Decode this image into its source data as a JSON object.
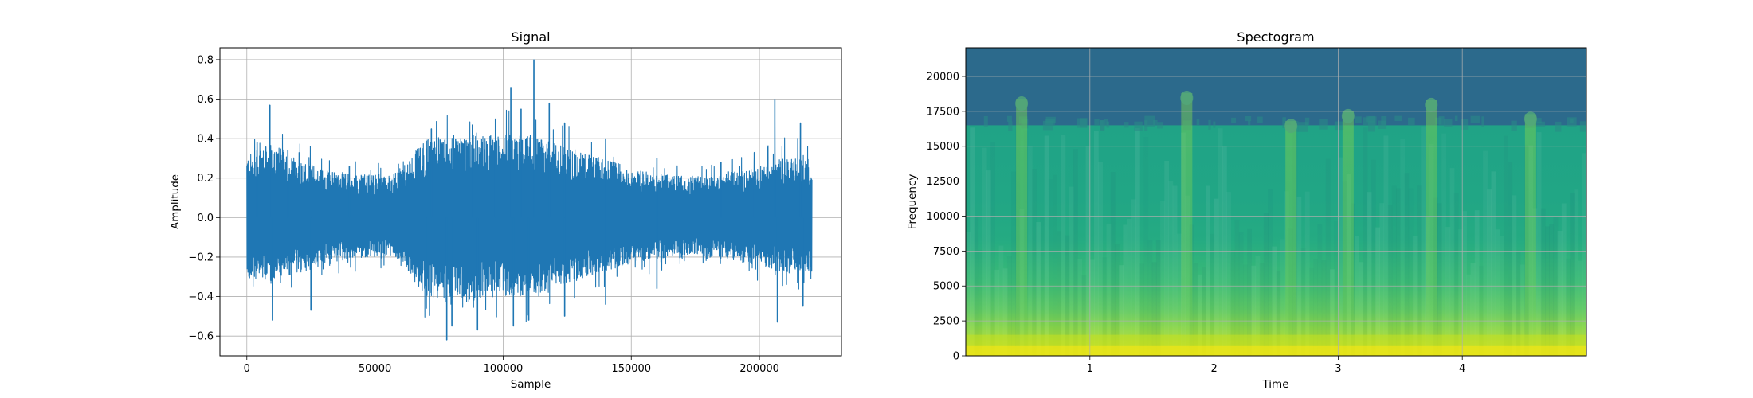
{
  "figure": {
    "background": "#ffffff"
  },
  "chart_data": [
    {
      "type": "line",
      "title": "Signal",
      "xlabel": "Sample",
      "ylabel": "Amplitude",
      "xlim": [
        -10500,
        232000
      ],
      "ylim": [
        -0.7,
        0.86
      ],
      "xticks": [
        0,
        50000,
        100000,
        150000,
        200000
      ],
      "xtick_labels": [
        "0",
        "50000",
        "100000",
        "150000",
        "200000"
      ],
      "yticks": [
        -0.6,
        -0.4,
        -0.2,
        0.0,
        0.2,
        0.4,
        0.6,
        0.8
      ],
      "ytick_labels": [
        "−0.6",
        "−0.4",
        "−0.2",
        "0.0",
        "0.2",
        "0.4",
        "0.6",
        "0.8"
      ],
      "grid": true,
      "line_color": "#1f77b4",
      "series": [
        {
          "x_range": [
            0,
            220500
          ],
          "envelope": {
            "x": [
              0,
              10000,
              20000,
              30000,
              40000,
              50000,
              55000,
              60000,
              70000,
              80000,
              90000,
              100000,
              110000,
              120000,
              130000,
              140000,
              150000,
              160000,
              170000,
              180000,
              190000,
              200000,
              210000,
              220500
            ],
            "upper": [
              0.3,
              0.36,
              0.28,
              0.24,
              0.21,
              0.21,
              0.2,
              0.24,
              0.38,
              0.4,
              0.4,
              0.4,
              0.4,
              0.36,
              0.32,
              0.28,
              0.24,
              0.21,
              0.2,
              0.2,
              0.22,
              0.24,
              0.3,
              0.28
            ],
            "lower": [
              -0.3,
              -0.32,
              -0.27,
              -0.23,
              -0.2,
              -0.19,
              -0.18,
              -0.23,
              -0.38,
              -0.42,
              -0.4,
              -0.38,
              -0.38,
              -0.34,
              -0.3,
              -0.26,
              -0.22,
              -0.2,
              -0.18,
              -0.19,
              -0.21,
              -0.23,
              -0.27,
              -0.26
            ]
          },
          "peaks": [
            {
              "x": 9000,
              "y": 0.57
            },
            {
              "x": 4000,
              "y": 0.38
            },
            {
              "x": 16000,
              "y": 0.34
            },
            {
              "x": 40000,
              "y": 0.26
            },
            {
              "x": 72000,
              "y": 0.45
            },
            {
              "x": 88000,
              "y": 0.47
            },
            {
              "x": 97000,
              "y": 0.5
            },
            {
              "x": 103000,
              "y": 0.66
            },
            {
              "x": 107000,
              "y": 0.55
            },
            {
              "x": 112000,
              "y": 0.8
            },
            {
              "x": 118000,
              "y": 0.58
            },
            {
              "x": 124000,
              "y": 0.48
            },
            {
              "x": 140000,
              "y": 0.4
            },
            {
              "x": 160000,
              "y": 0.3
            },
            {
              "x": 185000,
              "y": 0.28
            },
            {
              "x": 198000,
              "y": 0.33
            },
            {
              "x": 206000,
              "y": 0.6
            },
            {
              "x": 216000,
              "y": 0.48
            },
            {
              "x": 10000,
              "y": -0.52
            },
            {
              "x": 25000,
              "y": -0.47
            },
            {
              "x": 70000,
              "y": -0.46
            },
            {
              "x": 78000,
              "y": -0.62
            },
            {
              "x": 80000,
              "y": -0.55
            },
            {
              "x": 90000,
              "y": -0.57
            },
            {
              "x": 104000,
              "y": -0.55
            },
            {
              "x": 110000,
              "y": -0.52
            },
            {
              "x": 124000,
              "y": -0.5
            },
            {
              "x": 140000,
              "y": -0.44
            },
            {
              "x": 160000,
              "y": -0.36
            },
            {
              "x": 207000,
              "y": -0.53
            },
            {
              "x": 217000,
              "y": -0.45
            }
          ]
        }
      ]
    },
    {
      "type": "heatmap",
      "title": "Spectogram",
      "xlabel": "Time",
      "ylabel": "Frequency",
      "xlim": [
        0,
        5.0
      ],
      "ylim": [
        0,
        22050
      ],
      "xticks": [
        1,
        2,
        3,
        4
      ],
      "xtick_labels": [
        "1",
        "2",
        "3",
        "4"
      ],
      "yticks": [
        0,
        2500,
        5000,
        7500,
        10000,
        12500,
        15000,
        17500,
        20000
      ],
      "ytick_labels": [
        "0",
        "2500",
        "5000",
        "7500",
        "10000",
        "12500",
        "15000",
        "17500",
        "20000"
      ],
      "grid": true,
      "colormap": "viridis",
      "cutoff_frequency": 16500,
      "bright_bands": [
        {
          "time": 0.45,
          "top_frequency": 18400
        },
        {
          "time": 1.78,
          "top_frequency": 18800
        },
        {
          "time": 2.62,
          "top_frequency": 16800
        },
        {
          "time": 3.08,
          "top_frequency": 17500
        },
        {
          "time": 3.75,
          "top_frequency": 18300
        },
        {
          "time": 4.55,
          "top_frequency": 17300
        }
      ]
    }
  ]
}
